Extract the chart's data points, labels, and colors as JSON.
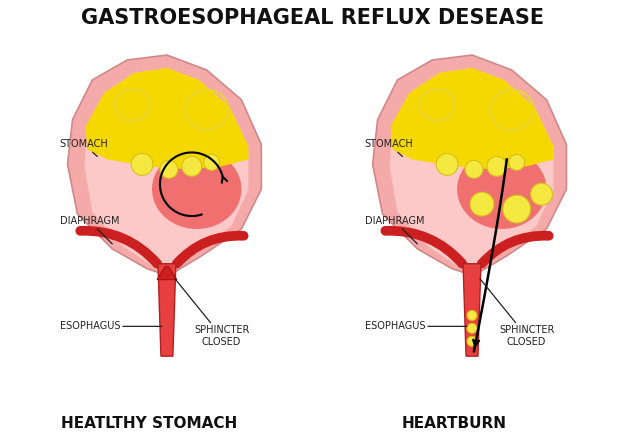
{
  "title": "GASTROESOPHAGEAL REFLUX DESEASE",
  "title_fontsize": 15,
  "title_fontweight": "bold",
  "subtitle_left": "HEATLTHY STOMACH",
  "subtitle_right": "HEARTBURN",
  "subtitle_fontsize": 11,
  "subtitle_fontweight": "bold",
  "bg_color": "#ffffff",
  "stomach_outer_color": "#f5aaaa",
  "stomach_inner_light": "#fcc8c8",
  "inner_cavity_color": "#f07070",
  "acid_color": "#f5d800",
  "esophagus_color": "#e84040",
  "diaphragm_color": "#cc2020",
  "bubble_yellow": "#f5e840",
  "bubble_outline": "#d4c020",
  "circle_outline": "#e8d020",
  "arrow_color": "#111111",
  "label_color": "#222222",
  "label_fontsize": 7.0
}
